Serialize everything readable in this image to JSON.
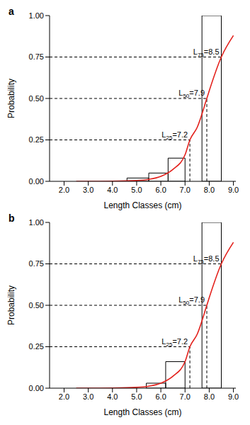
{
  "chart_data": [
    {
      "type": "histogram",
      "title": "a",
      "x_label": "Length Classes (cm)",
      "y_label": "Probability",
      "bins": [
        4.6,
        5.5,
        6.3,
        7.0,
        7.7,
        8.5
      ],
      "values": [
        0.02,
        0.05,
        0.14,
        0.0,
        1.0
      ],
      "color": "#000000",
      "curve": {
        "type": "line",
        "color": "#e3211c",
        "x": [
          2.5,
          3.0,
          4.0,
          5.0,
          5.5,
          6.0,
          6.5,
          7.0,
          7.2,
          7.5,
          7.9,
          8.0,
          8.5,
          9.0
        ],
        "values": [
          0.0,
          0.0,
          0.001,
          0.005,
          0.012,
          0.03,
          0.072,
          0.16,
          0.25,
          0.325,
          0.5,
          0.546,
          0.75,
          0.88
        ]
      },
      "annotations": [
        {
          "label": "L75=8.5",
          "x": 8.5,
          "y": 0.75
        },
        {
          "label": "L50=7.9",
          "x": 7.9,
          "y": 0.5
        },
        {
          "label": "L25=7.2",
          "x": 7.2,
          "y": 0.25
        }
      ],
      "xlim": [
        1.4,
        9.1
      ],
      "xticks": [
        {
          "value": 2,
          "label": "2.0"
        },
        {
          "value": 3,
          "label": "3.0"
        },
        {
          "value": 4,
          "label": "4.0"
        },
        {
          "value": 5,
          "label": "5.0"
        },
        {
          "value": 6,
          "label": "6.0"
        },
        {
          "value": 7,
          "label": "7.0"
        },
        {
          "value": 8,
          "label": "8.0"
        },
        {
          "value": 9,
          "label": "9.0"
        }
      ],
      "ylim": [
        0,
        1
      ],
      "yticks": [
        {
          "value": 0,
          "label": "0.00"
        },
        {
          "value": 0.25,
          "label": "0.25"
        },
        {
          "value": 0.5,
          "label": "0.50"
        },
        {
          "value": 0.75,
          "label": "0.75"
        },
        {
          "value": 1,
          "label": "1.00"
        }
      ]
    },
    {
      "type": "histogram",
      "title": "b",
      "x_label": "Length Classes (cm)",
      "y_label": "Probability",
      "bins": [
        5.4,
        6.2,
        7.0,
        7.7,
        8.5
      ],
      "values": [
        0.03,
        0.16,
        0.0,
        1.0
      ],
      "color": "#000000",
      "curve": {
        "type": "line",
        "color": "#e3211c",
        "x": [
          2.5,
          3.0,
          4.0,
          5.0,
          5.5,
          6.0,
          6.5,
          7.0,
          7.2,
          7.5,
          7.9,
          8.0,
          8.5,
          9.0
        ],
        "values": [
          0.0,
          0.0,
          0.001,
          0.005,
          0.012,
          0.03,
          0.072,
          0.16,
          0.25,
          0.325,
          0.5,
          0.546,
          0.75,
          0.88
        ]
      },
      "annotations": [
        {
          "label": "L75=8.5",
          "x": 8.5,
          "y": 0.75
        },
        {
          "label": "L50=7.9",
          "x": 7.9,
          "y": 0.5
        },
        {
          "label": "L25=7.2",
          "x": 7.2,
          "y": 0.25
        }
      ],
      "xlim": [
        1.4,
        9.1
      ],
      "xticks": [
        {
          "value": 2,
          "label": "2.0"
        },
        {
          "value": 3,
          "label": "3.0"
        },
        {
          "value": 4,
          "label": "4.0"
        },
        {
          "value": 5,
          "label": "5.0"
        },
        {
          "value": 6,
          "label": "6.0"
        },
        {
          "value": 7,
          "label": "7.0"
        },
        {
          "value": 8,
          "label": "8.0"
        },
        {
          "value": 9,
          "label": "9.0"
        }
      ],
      "ylim": [
        0,
        1
      ],
      "yticks": [
        {
          "value": 0,
          "label": "0.00"
        },
        {
          "value": 0.25,
          "label": "0.25"
        },
        {
          "value": 0.5,
          "label": "0.50"
        },
        {
          "value": 0.75,
          "label": "0.75"
        },
        {
          "value": 1,
          "label": "1.00"
        }
      ]
    }
  ]
}
